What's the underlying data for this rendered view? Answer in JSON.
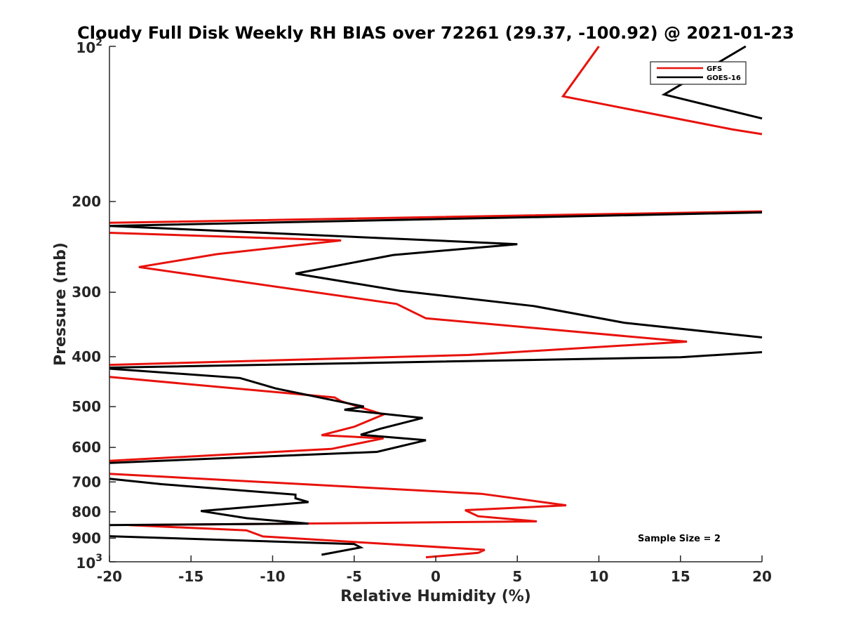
{
  "chart_data": {
    "type": "line",
    "title": "Cloudy Full Disk Weekly RH BIAS over 72261 (29.37, -100.92) @ 2021-01-23",
    "xlabel": "Relative Humidity (%)",
    "ylabel": "Pressure (mb)",
    "xlim": [
      -20,
      20
    ],
    "ylim": [
      100,
      1000
    ],
    "yscale": "log",
    "y_reversed": true,
    "grid": false,
    "legend_position": "top-right",
    "x_ticks": [
      "-20",
      "-15",
      "-10",
      "-5",
      "0",
      "5",
      "10",
      "15",
      "20"
    ],
    "y_ticks": [
      {
        "value": 100,
        "base": "10",
        "exp": "2",
        "label": ""
      },
      {
        "value": 200,
        "label": "200"
      },
      {
        "value": 300,
        "label": "300"
      },
      {
        "value": 400,
        "label": "400"
      },
      {
        "value": 500,
        "label": "500"
      },
      {
        "value": 600,
        "label": "600"
      },
      {
        "value": 700,
        "label": "700"
      },
      {
        "value": 800,
        "label": "800"
      },
      {
        "value": 900,
        "label": "900"
      },
      {
        "value": 1000,
        "base": "10",
        "exp": "3",
        "label": ""
      }
    ],
    "series": [
      {
        "name": "GFS",
        "color": "#e8120c",
        "points": [
          [
            10.0,
            100
          ],
          [
            7.8,
            125
          ],
          [
            18.2,
            145
          ],
          [
            20.0,
            148
          ],
          null,
          [
            20.0,
            209
          ],
          [
            -20.0,
            220
          ],
          null,
          [
            -20.0,
            230
          ],
          [
            -5.8,
            238
          ],
          [
            -13.4,
            253
          ],
          [
            -18.2,
            268
          ],
          [
            -2.4,
            316
          ],
          [
            -0.6,
            337
          ],
          [
            15.4,
            374
          ],
          [
            2.0,
            397
          ],
          [
            -20.0,
            415
          ],
          null,
          [
            -20.0,
            438
          ],
          [
            -6.2,
            480
          ],
          [
            -5.8,
            488
          ],
          [
            -3.2,
            518
          ],
          [
            -5.0,
            547
          ],
          [
            -7.0,
            568
          ],
          [
            -3.2,
            576
          ],
          [
            -6.4,
            604
          ],
          [
            -20.0,
            637
          ],
          null,
          [
            -20.0,
            675
          ],
          [
            2.8,
            738
          ],
          [
            8.0,
            777
          ],
          [
            1.8,
            794
          ],
          [
            2.6,
            816
          ],
          [
            6.2,
            835
          ],
          [
            -18.8,
            849
          ],
          [
            -11.6,
            869
          ],
          [
            -10.6,
            893
          ],
          [
            3.0,
            948
          ],
          [
            2.6,
            961
          ],
          [
            -0.6,
            980
          ]
        ]
      },
      {
        "name": "GOES-16",
        "color": "#000000",
        "points": [
          [
            19.0,
            100
          ],
          [
            14.0,
            124
          ],
          [
            20.0,
            138
          ],
          null,
          [
            20.0,
            210
          ],
          [
            -20.0,
            223
          ],
          null,
          [
            -20.0,
            223
          ],
          [
            5.0,
            242
          ],
          [
            -2.6,
            254
          ],
          [
            -8.6,
            276
          ],
          [
            -2.2,
            298
          ],
          [
            6.0,
            319
          ],
          [
            11.6,
            344
          ],
          [
            20.0,
            367
          ],
          null,
          [
            20.0,
            392
          ],
          [
            15.0,
            401
          ],
          [
            -20.0,
            420
          ],
          null,
          [
            -20.0,
            422
          ],
          [
            -12.0,
            440
          ],
          [
            -9.8,
            461
          ],
          [
            -4.4,
            500
          ],
          [
            -5.6,
            507
          ],
          [
            -0.8,
            526
          ],
          [
            -3.4,
            552
          ],
          [
            -4.6,
            567
          ],
          [
            -0.6,
            581
          ],
          [
            -3.6,
            612
          ],
          [
            -20.0,
            643
          ],
          null,
          [
            -20.0,
            690
          ],
          [
            -16.8,
            707
          ],
          [
            -8.6,
            741
          ],
          [
            -8.6,
            753
          ],
          [
            -7.8,
            766
          ],
          [
            -14.4,
            797
          ],
          [
            -11.6,
            823
          ],
          [
            -7.8,
            843
          ],
          [
            -20.0,
            849
          ],
          null,
          [
            -20.0,
            892
          ],
          [
            -5.0,
            924
          ],
          [
            -4.6,
            938
          ],
          [
            -7.0,
            969
          ]
        ]
      }
    ],
    "annotations": [
      {
        "text": "Sample Size = 2",
        "position": "bottom-right"
      }
    ]
  }
}
